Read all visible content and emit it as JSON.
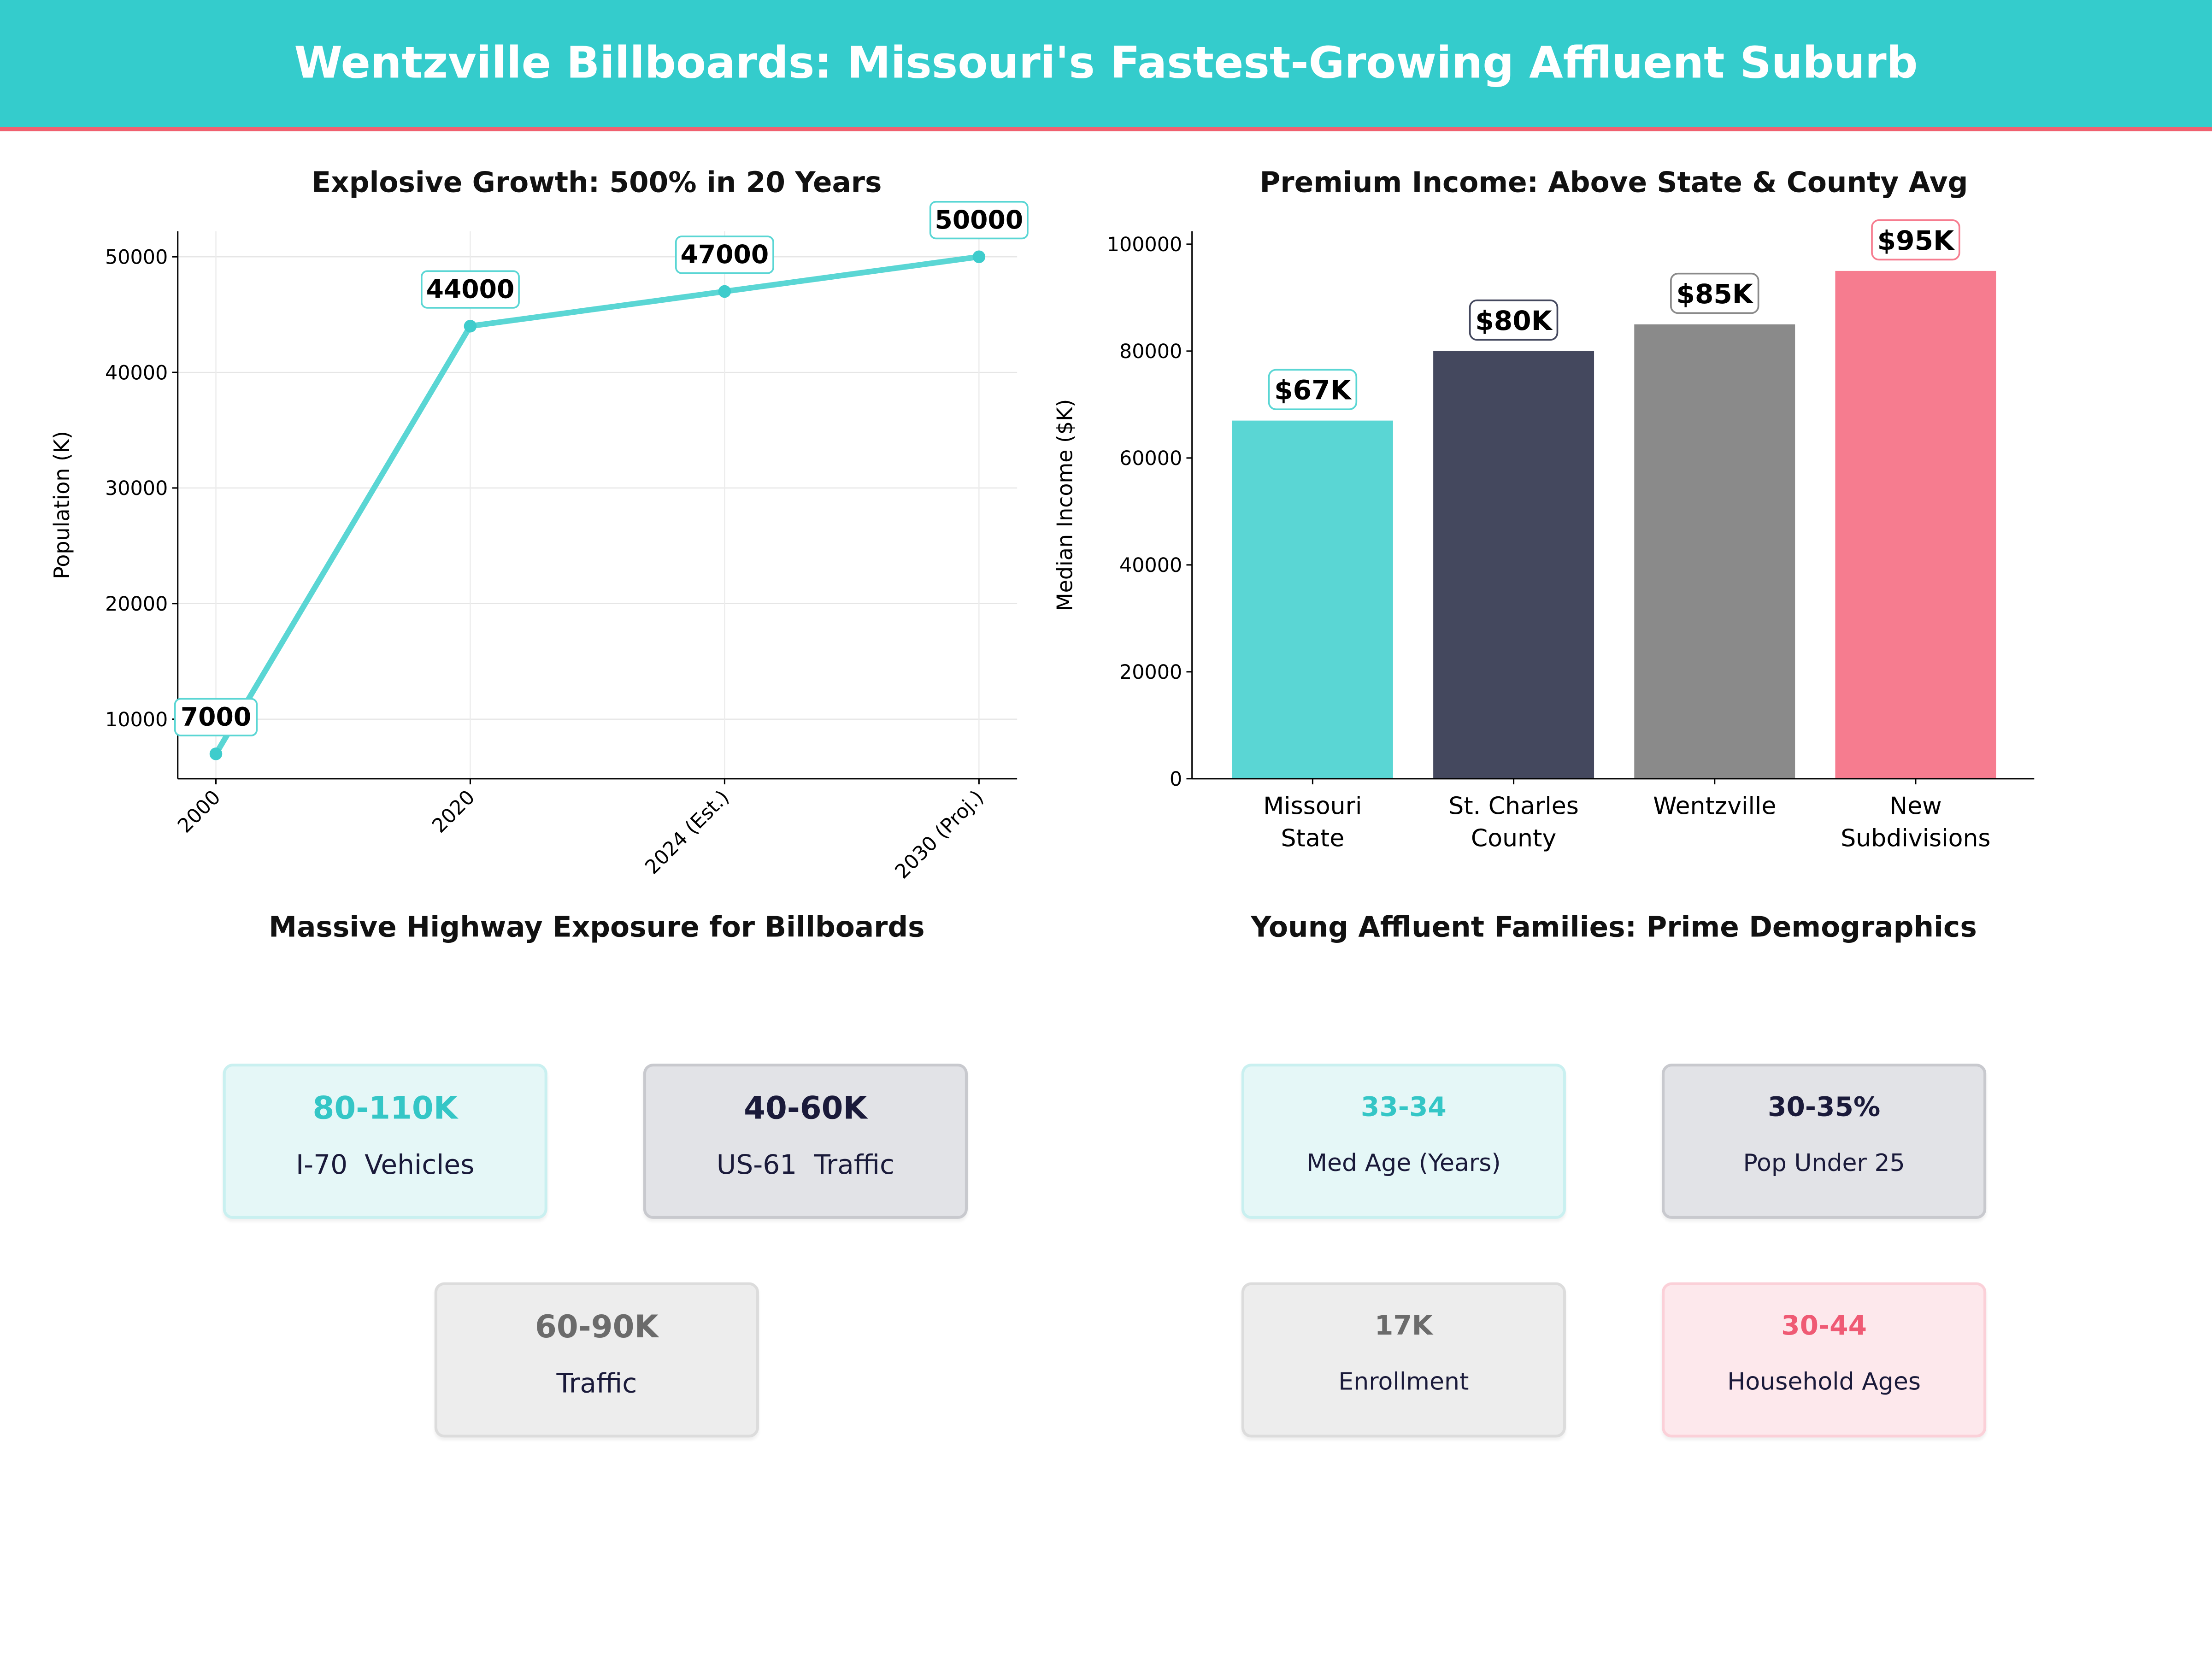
{
  "header": {
    "title": "Wentzville Billboards: Missouri's Fastest-Growing Affluent Suburb",
    "bg_color": "#34cccc",
    "accent_line": "#f0606f"
  },
  "chart_data": [
    {
      "type": "line",
      "title": "Explosive Growth: 500% in 20 Years",
      "xlabel": "",
      "ylabel": "Population (K)",
      "categories": [
        "2000",
        "2020",
        "2024 (Est.)",
        "2030 (Proj.)"
      ],
      "values": [
        7000,
        44000,
        47000,
        50000
      ],
      "data_labels": [
        "7000",
        "44000",
        "47000",
        "50000"
      ],
      "yticks": [
        10000,
        20000,
        30000,
        40000,
        50000
      ],
      "ylim": [
        4850,
        52200
      ],
      "grid": true,
      "color": "#5ad6d4"
    },
    {
      "type": "bar",
      "title": "Premium Income: Above State & County Avg",
      "xlabel": "",
      "ylabel": "Median Income ($K)",
      "categories": [
        [
          "Missouri",
          "State"
        ],
        [
          "St. Charles",
          "County"
        ],
        [
          "Wentzville",
          ""
        ],
        [
          "New",
          "Subdivisions"
        ]
      ],
      "values": [
        67000,
        80000,
        85000,
        95000
      ],
      "data_labels": [
        "$67K",
        "$80K",
        "$85K",
        "$95K"
      ],
      "colors": [
        "#5ad6d4",
        "#44485e",
        "#8a8a8a",
        "#f67c8f"
      ],
      "yticks": [
        0,
        20000,
        40000,
        60000,
        80000,
        100000
      ],
      "ylim": [
        0,
        102400
      ],
      "grid": false
    }
  ],
  "highway": {
    "title": "Massive Highway Exposure for Billboards",
    "cards": [
      {
        "value": "80-110K",
        "label": "I-70  Vehicles",
        "theme": "teal"
      },
      {
        "value": "40-60K",
        "label": "US-61  Traffic",
        "theme": "navy"
      },
      {
        "value": "60-90K",
        "label": "Traffic",
        "theme": "gray"
      }
    ]
  },
  "demographics": {
    "title": "Young Affluent Families: Prime Demographics",
    "cards": [
      {
        "value": "33-34",
        "label": "Med Age (Years)",
        "theme": "teal"
      },
      {
        "value": "30-35%",
        "label": "Pop Under 25",
        "theme": "navy"
      },
      {
        "value": "17K",
        "label": "Enrollment",
        "theme": "gray"
      },
      {
        "value": "30-44",
        "label": "Household Ages",
        "theme": "pink"
      }
    ]
  },
  "themes": {
    "teal": {
      "bg": "#e5f7f7",
      "border": "#c9f0f0",
      "value": "#34c6c6"
    },
    "navy": {
      "bg": "#e2e3e7",
      "border": "#c8c9ce",
      "value": "#1a1a3a"
    },
    "gray": {
      "bg": "#ededed",
      "border": "#dcdcdc",
      "value": "#6b6b6b"
    },
    "pink": {
      "bg": "#fde8ec",
      "border": "#fbd0d8",
      "value": "#ef5a74"
    }
  }
}
